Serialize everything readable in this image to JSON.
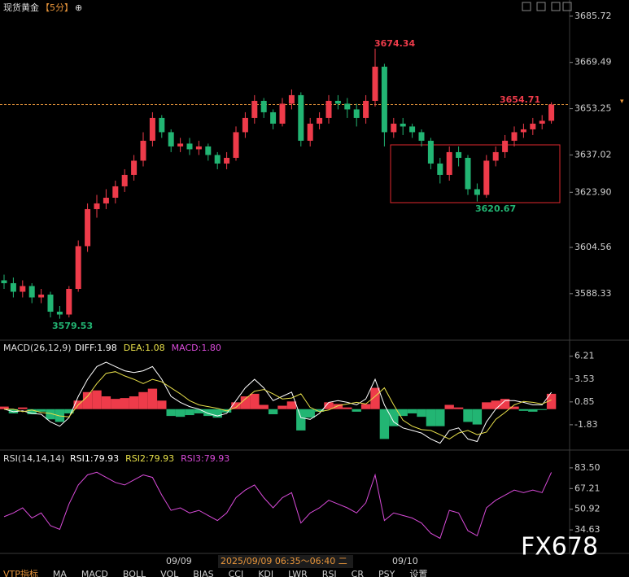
{
  "header": {
    "title": "现货黄金",
    "period": "【5分】",
    "icon": "⊕"
  },
  "chart_data": [
    {
      "type": "candlestick",
      "up_color": "#ee3b4a",
      "down_color": "#22b573",
      "last_line_color": "#e8953a",
      "open": [
        3593,
        3592,
        3589,
        3591,
        3587,
        3588,
        3582,
        3581,
        3590,
        3605,
        3618,
        3620,
        3622,
        3626,
        3630,
        3635,
        3642,
        3650,
        3645,
        3640,
        3641,
        3639,
        3640,
        3637,
        3634,
        3636,
        3645,
        3650,
        3656,
        3652,
        3648,
        3655,
        3658,
        3642,
        3648,
        3650,
        3656,
        3655,
        3653,
        3650,
        3656,
        3668,
        3645,
        3648,
        3647,
        3645,
        3642,
        3634,
        3630,
        3638,
        3636,
        3625,
        3623,
        3635,
        3638,
        3642,
        3645,
        3646,
        3648,
        3649
      ],
      "high": [
        3595,
        3594,
        3593,
        3592,
        3590,
        3589,
        3584,
        3591,
        3607,
        3620,
        3623,
        3625,
        3628,
        3632,
        3637,
        3645,
        3652,
        3651,
        3646,
        3643,
        3643,
        3642,
        3641,
        3638,
        3638,
        3647,
        3652,
        3658,
        3657,
        3653,
        3657,
        3660,
        3659,
        3650,
        3652,
        3658,
        3658,
        3657,
        3655,
        3658,
        3674.34,
        3669,
        3650,
        3650,
        3648,
        3646,
        3643,
        3636,
        3640,
        3640,
        3637,
        3627,
        3637,
        3640,
        3644,
        3647,
        3648,
        3650,
        3651,
        3655.5
      ],
      "low": [
        3590,
        3587,
        3587,
        3585,
        3585,
        3580,
        3579.53,
        3580,
        3589,
        3603,
        3615,
        3618,
        3620,
        3624,
        3628,
        3633,
        3640,
        3643,
        3638,
        3638,
        3637,
        3637,
        3635,
        3632,
        3632,
        3635,
        3643,
        3648,
        3650,
        3646,
        3647,
        3653,
        3640,
        3640,
        3646,
        3648,
        3653,
        3650,
        3647,
        3648,
        3654,
        3640,
        3643,
        3644,
        3643,
        3640,
        3632,
        3627,
        3628,
        3633,
        3623,
        3620.67,
        3622,
        3633,
        3636,
        3640,
        3643,
        3644,
        3646,
        3648
      ],
      "close": [
        3592,
        3589,
        3591,
        3587,
        3588,
        3582,
        3581,
        3590,
        3605,
        3618,
        3620,
        3622,
        3626,
        3630,
        3635,
        3642,
        3650,
        3645,
        3640,
        3641,
        3639,
        3640,
        3637,
        3634,
        3636,
        3645,
        3650,
        3656,
        3652,
        3648,
        3655,
        3658,
        3642,
        3648,
        3650,
        3656,
        3655,
        3653,
        3650,
        3656,
        3668,
        3645,
        3648,
        3647,
        3645,
        3642,
        3634,
        3630,
        3638,
        3636,
        3625,
        3623,
        3635,
        3638,
        3642,
        3645,
        3646,
        3648,
        3649,
        3654.71
      ],
      "ylim": [
        3572.0,
        3691.4
      ],
      "yticks": [
        {
          "value": 3685.72,
          "label": "3685.72"
        },
        {
          "value": 3669.49,
          "label": "3669.49"
        },
        {
          "value": 3653.25,
          "label": "3653.25"
        },
        {
          "value": 3637.02,
          "label": "3637.02"
        },
        {
          "value": 3623.9,
          "label": "3623.90"
        },
        {
          "value": 3604.56,
          "label": "3604.56"
        },
        {
          "value": 3588.33,
          "label": "3588.33"
        }
      ],
      "annotations": [
        "3674.34",
        "3654.71",
        "3620.67",
        "3579.53"
      ]
    },
    {
      "type": "macd",
      "title": "MACD(26,12,9)",
      "readouts": [
        {
          "text": "DIFF:1.98",
          "color": "#ffffff"
        },
        {
          "text": "DEA:1.08",
          "color": "#e8e04a"
        },
        {
          "text": "MACD:1.80",
          "color": "#d94bd9"
        }
      ],
      "pos_color": "#ee3b4a",
      "neg_color": "#22b573",
      "series": [
        {
          "name": "MACD",
          "values": [
            0.3,
            -0.5,
            0.2,
            -0.6,
            -0.3,
            -1.2,
            -1.5,
            -0.5,
            1.0,
            2.0,
            2.2,
            1.5,
            1.2,
            1.3,
            1.5,
            2.0,
            2.4,
            1.0,
            -0.8,
            -0.9,
            -0.7,
            -0.5,
            -0.8,
            -1.0,
            -0.4,
            0.8,
            1.5,
            1.8,
            0.5,
            -0.6,
            0.4,
            0.9,
            -2.5,
            -1.0,
            -0.3,
            0.8,
            0.6,
            0.2,
            -0.3,
            0.6,
            2.5,
            -3.5,
            -2.0,
            -0.8,
            -0.5,
            -0.9,
            -2.0,
            -2.0,
            0.5,
            0.2,
            -1.5,
            -1.8,
            0.8,
            1.0,
            1.2,
            0.3,
            -0.2,
            -0.3,
            -0.1,
            1.8
          ]
        },
        {
          "name": "DIFF",
          "color": "#ffffff",
          "values": [
            0.0,
            -0.3,
            -0.2,
            -0.5,
            -0.6,
            -1.5,
            -2.0,
            -1.0,
            1.5,
            3.5,
            5.0,
            5.5,
            5.0,
            4.5,
            4.3,
            4.5,
            5.0,
            3.5,
            1.5,
            0.8,
            0.3,
            0.0,
            -0.5,
            -0.8,
            -0.5,
            1.0,
            2.5,
            3.5,
            2.5,
            1.0,
            1.5,
            2.0,
            -1.0,
            -1.2,
            -0.5,
            0.8,
            1.0,
            0.8,
            0.5,
            1.2,
            3.5,
            0.5,
            -1.5,
            -2.2,
            -2.5,
            -2.8,
            -3.5,
            -4.0,
            -2.5,
            -2.2,
            -3.5,
            -3.8,
            -1.5,
            0.0,
            1.0,
            1.0,
            0.8,
            0.5,
            0.5,
            1.98
          ]
        },
        {
          "name": "DEA",
          "color": "#e8e04a",
          "values": [
            0.0,
            0.0,
            -0.3,
            -0.1,
            -0.4,
            -0.5,
            -0.8,
            -0.9,
            0.5,
            1.5,
            3.0,
            4.2,
            4.4,
            3.9,
            3.5,
            3.0,
            3.5,
            3.2,
            2.5,
            1.8,
            1.0,
            0.5,
            0.3,
            0.1,
            -0.2,
            0.2,
            1.2,
            2.1,
            2.3,
            1.8,
            1.2,
            1.3,
            1.8,
            0.2,
            -0.3,
            -0.1,
            0.4,
            0.6,
            0.8,
            0.6,
            1.5,
            2.5,
            0.5,
            -1.3,
            -2.0,
            -2.4,
            -2.5,
            -3.0,
            -3.5,
            -2.8,
            -2.5,
            -3.0,
            -2.7,
            -1.2,
            -0.4,
            0.5,
            0.9,
            0.8,
            0.6,
            1.08
          ]
        }
      ],
      "ylim": [
        -4.8,
        7.9
      ],
      "yticks": [
        6.21,
        3.53,
        0.85,
        -1.83
      ]
    },
    {
      "type": "line",
      "title": "RSI(14,14,14)",
      "readouts": [
        {
          "text": "RSI1:79.93",
          "color": "#ffffff"
        },
        {
          "text": "RSI2:79.93",
          "color": "#e8e04a"
        },
        {
          "text": "RSI3:79.93",
          "color": "#d94bd9"
        }
      ],
      "series": [
        {
          "name": "RSI",
          "color": "#d94bd9",
          "values": [
            45,
            48,
            52,
            44,
            48,
            38,
            35,
            55,
            70,
            78,
            80,
            76,
            72,
            70,
            74,
            78,
            76,
            62,
            50,
            52,
            48,
            50,
            46,
            42,
            48,
            60,
            66,
            70,
            60,
            52,
            60,
            64,
            40,
            48,
            52,
            58,
            55,
            52,
            48,
            56,
            78,
            42,
            48,
            46,
            44,
            40,
            32,
            28,
            50,
            48,
            34,
            30,
            52,
            58,
            62,
            66,
            64,
            66,
            64,
            79.93
          ]
        }
      ],
      "ylim": [
        9.7,
        95.6
      ],
      "yticks": [
        {
          "value": 83.5,
          "label": "83.50"
        },
        {
          "value": 67.21,
          "label": "67.21"
        },
        {
          "value": 50.92,
          "label": "50.92"
        },
        {
          "value": 34.63,
          "label": "34.63"
        }
      ]
    }
  ],
  "footer": {
    "dates": [
      "09/09",
      "2025/09/09 06:35～06:40 二",
      "09/10"
    ],
    "tabs": [
      "VTP指标",
      "MA",
      "MACD",
      "BOLL",
      "VOL",
      "BIAS",
      "CCI",
      "KDJ",
      "LWR",
      "RSI",
      "CR",
      "PSY",
      "设置"
    ],
    "watermark": "FX678"
  }
}
